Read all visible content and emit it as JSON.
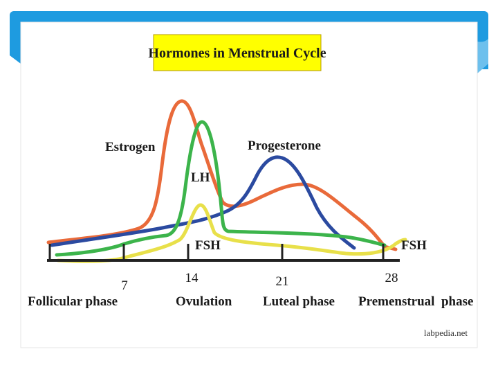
{
  "title": "Hormones in Menstrual Cycle",
  "credit": "labpedia.net",
  "colors": {
    "frame_blue": "#1e9be0",
    "title_box": "#ffff00",
    "estrogen": "#e96a3a",
    "progesterone": "#2b4aa0",
    "lh": "#3cb44b",
    "fsh": "#e8e04a",
    "axis": "#222222"
  },
  "labels": {
    "estrogen": "Estrogen",
    "progesterone": "Progesterone",
    "lh": "LH",
    "fsh_mid": "FSH",
    "fsh_end": "FSH"
  },
  "ticks": [
    "7",
    "14",
    "21",
    "28"
  ],
  "phases": [
    "Follicular phase",
    "Ovulation",
    "Luteal phase",
    "Premenstrual  phase"
  ]
}
